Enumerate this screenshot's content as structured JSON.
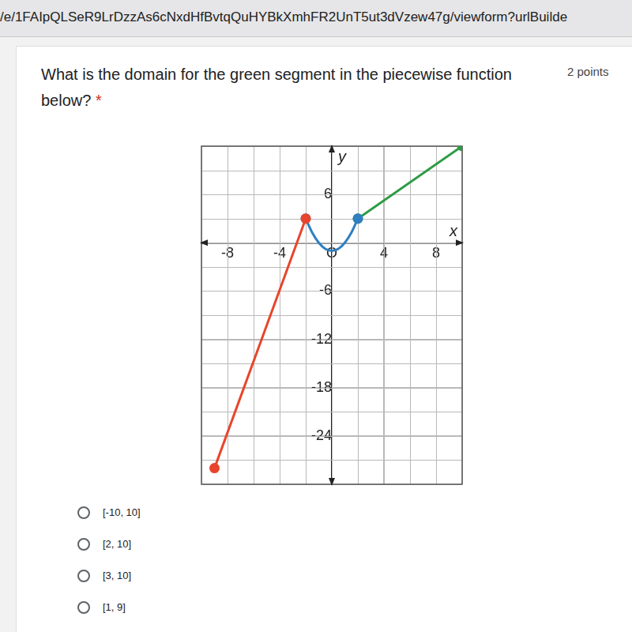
{
  "url": "/e/1FAIpQLSeR9LrDzzAs6cNxdHfBvtqQuHYBkXmhFR2UnT5ut3dVzew47g/viewform?urlBuilde",
  "question": "What is the domain for the green segment in the piecewise function below?",
  "required_mark": "*",
  "points": "2 points",
  "options": [
    "[-10, 10]",
    "[2, 10]",
    "[3, 10]",
    "[1, 9]"
  ],
  "chart_data": {
    "type": "line",
    "x_label": "x",
    "y_label": "y",
    "xlim": [
      -10,
      10
    ],
    "ylim": [
      -30,
      12
    ],
    "xticks": [
      -8,
      -4,
      {
        "value": 0,
        "label": "O"
      },
      4,
      8
    ],
    "yticks": [
      -24,
      -18,
      -12,
      -6,
      6
    ],
    "grid": true,
    "series": [
      {
        "color": "#e8452c",
        "x": [
          -9,
          -2
        ],
        "values": [
          -28,
          3
        ],
        "marker": "circle"
      },
      {
        "color": "#2f7fc1",
        "x": [
          -2,
          -1.5,
          -1,
          -0.5,
          0,
          0.5,
          1,
          1.5,
          2
        ],
        "values": [
          3,
          1.25,
          0,
          -0.75,
          -1,
          -0.75,
          0,
          1.25,
          3
        ],
        "marker": "circle"
      },
      {
        "color": "#2e9b45",
        "x": [
          2,
          10
        ],
        "values": [
          3,
          12
        ],
        "marker": "circle"
      }
    ]
  }
}
